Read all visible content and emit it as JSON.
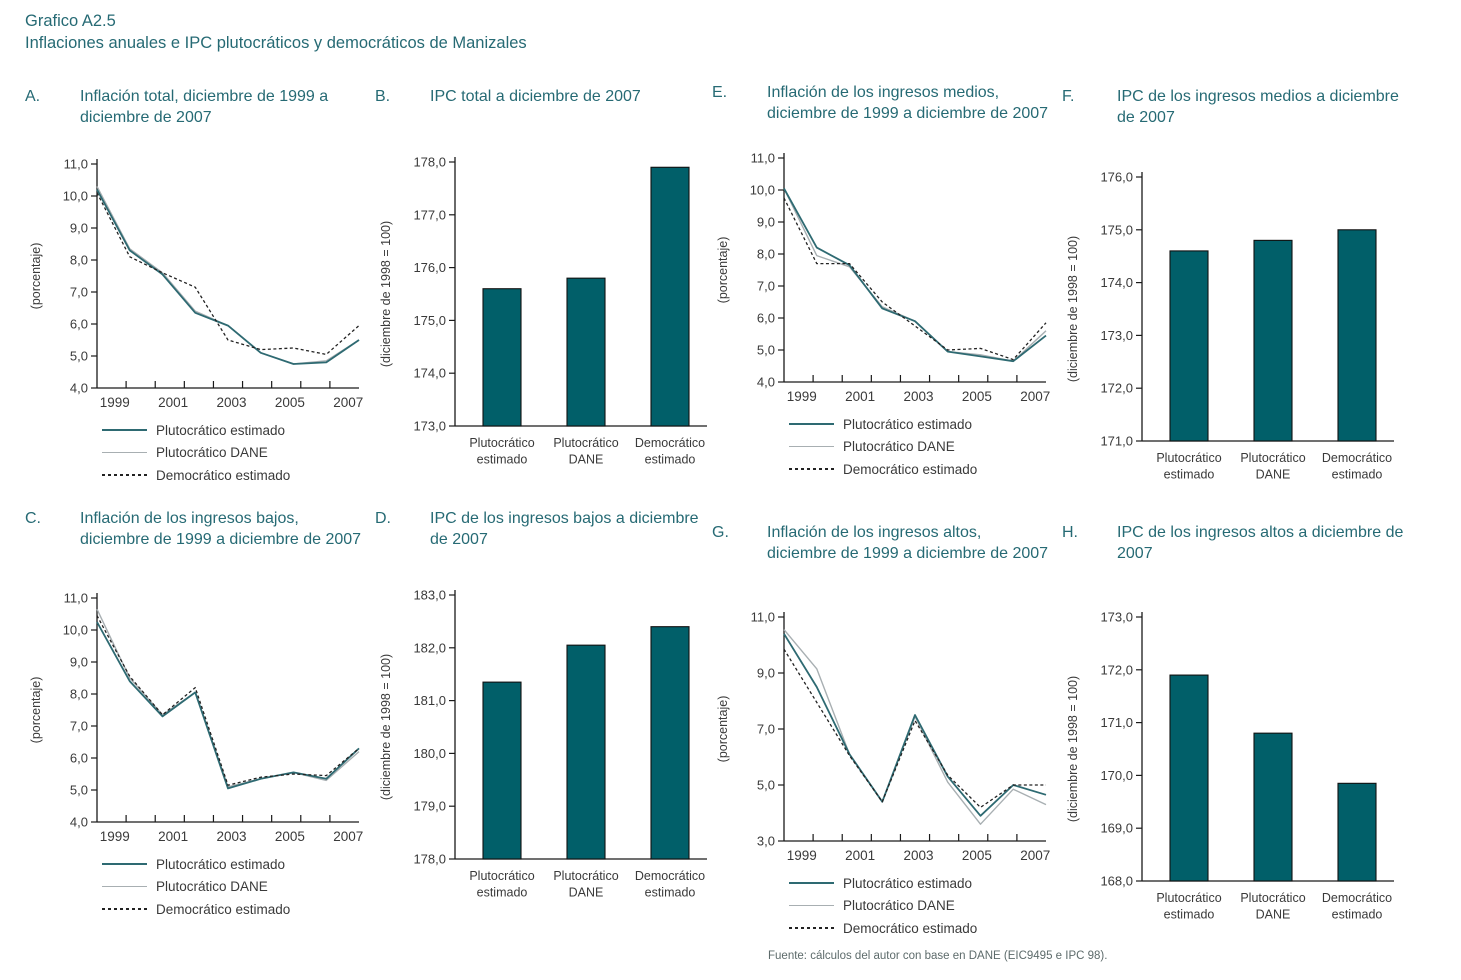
{
  "page": {
    "title_line1": "Grafico A2.5",
    "title_line2": "Inflaciones anuales e IPC plutocráticos y democráticos de Manizales",
    "source": "Fuente: cálculos del autor con base en DANE (EIC9495 e IPC 98)."
  },
  "colors": {
    "title_teal": "#266a74",
    "line_plutocratico_estimado": "#2e6a72",
    "line_plutocratico_dane": "#a8afb2",
    "line_democratico_estimado": "#222222",
    "bar_fill": "#015f69",
    "bar_stroke": "#111111",
    "axis": "#1a1a1a",
    "tick_text": "#3a3a3a"
  },
  "series_legend": [
    "Plutocrático estimado",
    "Plutocrático DANE",
    "Democrático estimado"
  ],
  "chart_data": [
    {
      "id": "A",
      "type": "line",
      "label": "A.",
      "title": "Inflación total, diciembre de 1999 a diciembre de 2007",
      "ylabel": "(porcentaje)",
      "ylim": [
        4.0,
        11.0
      ],
      "ytick_step": 1.0,
      "x": [
        1999,
        2000,
        2001,
        2002,
        2003,
        2004,
        2005,
        2006,
        2007
      ],
      "xtick_labels": [
        "1999",
        "2001",
        "2003",
        "2005",
        "2007"
      ],
      "legend_position": "bottom",
      "series": [
        {
          "name": "Plutocrático estimado",
          "style": "solid-teal",
          "values": [
            10.2,
            8.3,
            7.55,
            6.35,
            5.95,
            5.1,
            4.75,
            4.8,
            5.5
          ]
        },
        {
          "name": "Plutocrático DANE",
          "style": "solid-gray",
          "values": [
            10.3,
            8.35,
            7.6,
            6.4,
            5.95,
            5.1,
            4.75,
            4.85,
            5.5
          ]
        },
        {
          "name": "Democrático estimado",
          "style": "dashed",
          "values": [
            10.1,
            8.1,
            7.6,
            7.15,
            5.5,
            5.2,
            5.25,
            5.05,
            5.95
          ]
        }
      ]
    },
    {
      "id": "B",
      "type": "bar",
      "label": "B.",
      "title": "IPC total a diciembre de 2007",
      "ylabel": "(diciembre de 1998 = 100)",
      "ylim": [
        173.0,
        178.0
      ],
      "ytick_step": 1.0,
      "categories": [
        "Plutocrático estimado",
        "Plutocrático DANE",
        "Democrático estimado"
      ],
      "category_labels": [
        [
          "Plutocrático",
          "estimado"
        ],
        [
          "Plutocrático",
          "DANE"
        ],
        [
          "Democrático",
          "estimado"
        ]
      ],
      "values": [
        175.6,
        175.8,
        177.9
      ]
    },
    {
      "id": "E",
      "type": "line",
      "label": "E.",
      "title": "Inflación de los ingresos medios, diciembre de 1999 a diciembre de 2007",
      "ylabel": "(porcentaje)",
      "ylim": [
        4.0,
        11.0
      ],
      "ytick_step": 1.0,
      "x": [
        1999,
        2000,
        2001,
        2002,
        2003,
        2004,
        2005,
        2006,
        2007
      ],
      "xtick_labels": [
        "1999",
        "2001",
        "2003",
        "2005",
        "2007"
      ],
      "legend_position": "bottom",
      "series": [
        {
          "name": "Plutocrático estimado",
          "style": "solid-teal",
          "values": [
            10.05,
            8.2,
            7.65,
            6.3,
            5.9,
            4.95,
            4.8,
            4.65,
            5.45
          ]
        },
        {
          "name": "Plutocrático DANE",
          "style": "solid-gray",
          "values": [
            10.05,
            7.95,
            7.6,
            6.35,
            5.9,
            4.95,
            4.85,
            4.65,
            5.6
          ]
        },
        {
          "name": "Democrático estimado",
          "style": "dashed",
          "values": [
            9.75,
            7.7,
            7.7,
            6.5,
            5.75,
            5.0,
            5.05,
            4.7,
            5.85
          ]
        }
      ]
    },
    {
      "id": "F",
      "type": "bar",
      "label": "F.",
      "title": "IPC de los ingresos medios a diciembre de 2007",
      "ylabel": "(diciembre de 1998 = 100)",
      "ylim": [
        171.0,
        176.0
      ],
      "ytick_step": 1.0,
      "categories": [
        "Plutocrático estimado",
        "Plutocrático DANE",
        "Democrático estimado"
      ],
      "category_labels": [
        [
          "Plutocrático",
          "estimado"
        ],
        [
          "Plutocrático",
          "DANE"
        ],
        [
          "Democrático",
          "estimado"
        ]
      ],
      "values": [
        174.6,
        174.8,
        175.0
      ]
    },
    {
      "id": "C",
      "type": "line",
      "label": "C.",
      "title": "Inflación de los ingresos bajos, diciembre de 1999 a diciembre de 2007",
      "ylabel": "(porcentaje)",
      "ylim": [
        4.0,
        11.0
      ],
      "ytick_step": 1.0,
      "x": [
        1999,
        2000,
        2001,
        2002,
        2003,
        2004,
        2005,
        2006,
        2007
      ],
      "xtick_labels": [
        "1999",
        "2001",
        "2003",
        "2005",
        "2007"
      ],
      "legend_position": "bottom",
      "series": [
        {
          "name": "Plutocrático estimado",
          "style": "solid-teal",
          "values": [
            10.25,
            8.4,
            7.3,
            8.05,
            5.05,
            5.35,
            5.55,
            5.35,
            6.3
          ]
        },
        {
          "name": "Plutocrático DANE",
          "style": "solid-gray",
          "values": [
            10.65,
            8.5,
            7.35,
            8.05,
            5.1,
            5.35,
            5.55,
            5.3,
            6.2
          ]
        },
        {
          "name": "Democrático estimado",
          "style": "dashed",
          "values": [
            10.45,
            8.55,
            7.35,
            8.2,
            5.15,
            5.4,
            5.5,
            5.45,
            6.3
          ]
        }
      ]
    },
    {
      "id": "D",
      "type": "bar",
      "label": "D.",
      "title": "IPC de los ingresos bajos a diciembre de 2007",
      "ylabel": "(diciembre de 1998 = 100)",
      "ylim": [
        178.0,
        183.0
      ],
      "ytick_step": 1.0,
      "categories": [
        "Plutocrático estimado",
        "Plutocrático DANE",
        "Democrático estimado"
      ],
      "category_labels": [
        [
          "Plutocrático",
          "estimado"
        ],
        [
          "Plutocrático",
          "DANE"
        ],
        [
          "Democrático",
          "estimado"
        ]
      ],
      "values": [
        181.35,
        182.05,
        182.4
      ]
    },
    {
      "id": "G",
      "type": "line",
      "label": "G.",
      "title": "Inflación de los ingresos altos, diciembre de 1999 a diciembre de 2007",
      "ylabel": "(porcentaje)",
      "ylim": [
        3.0,
        11.0
      ],
      "ytick_step": 2.0,
      "x": [
        1999,
        2000,
        2001,
        2002,
        2003,
        2004,
        2005,
        2006,
        2007
      ],
      "xtick_labels": [
        "1999",
        "2001",
        "2003",
        "2005",
        "2007"
      ],
      "legend_position": "bottom",
      "series": [
        {
          "name": "Plutocrático estimado",
          "style": "solid-teal",
          "values": [
            10.4,
            8.5,
            6.1,
            4.4,
            7.5,
            5.3,
            3.9,
            5.0,
            4.65
          ]
        },
        {
          "name": "Plutocrático DANE",
          "style": "solid-gray",
          "values": [
            10.55,
            9.15,
            6.1,
            4.4,
            7.45,
            5.1,
            3.6,
            4.85,
            4.3
          ]
        },
        {
          "name": "Democrático estimado",
          "style": "dashed",
          "values": [
            9.85,
            7.95,
            6.05,
            4.4,
            7.3,
            5.35,
            4.2,
            5.0,
            5.0
          ]
        }
      ]
    },
    {
      "id": "H",
      "type": "bar",
      "label": "H.",
      "title": "IPC de los ingresos altos a diciembre de 2007",
      "ylabel": "(diciembre de 1998 = 100)",
      "ylim": [
        168.0,
        173.0
      ],
      "ytick_step": 1.0,
      "categories": [
        "Plutocrático estimado",
        "Plutocrático DANE",
        "Democrático estimado"
      ],
      "category_labels": [
        [
          "Plutocrático",
          "estimado"
        ],
        [
          "Plutocrático",
          "DANE"
        ],
        [
          "Democrático",
          "estimado"
        ]
      ],
      "values": [
        171.9,
        170.8,
        169.85
      ]
    }
  ]
}
